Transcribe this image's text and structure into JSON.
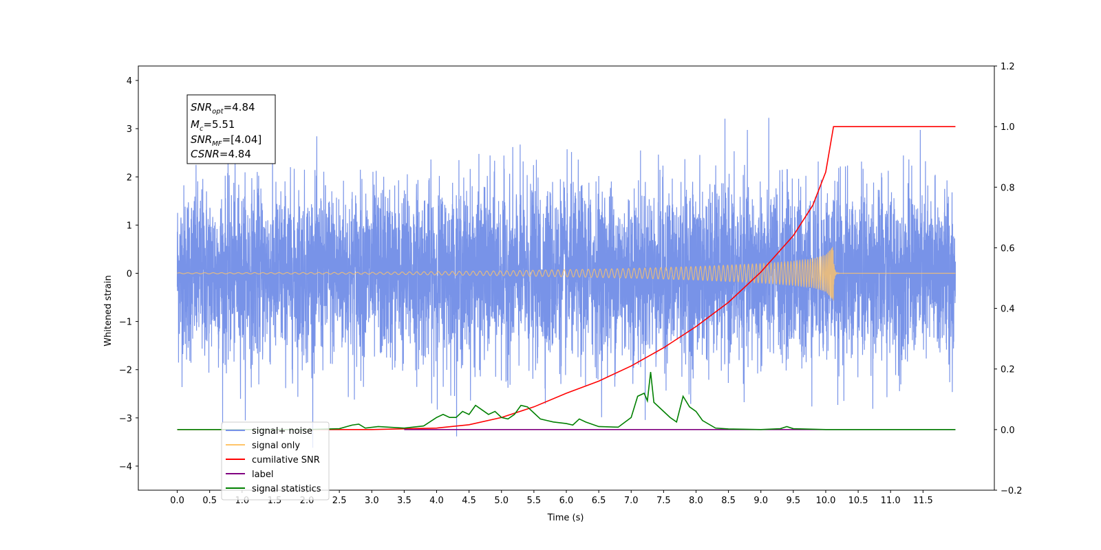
{
  "chart_data": {
    "type": "line",
    "title": "",
    "xlabel": "Time (s)",
    "ylabel": "Whitened strain",
    "y2label": "",
    "xlim": [
      -0.6,
      12.6
    ],
    "ylim": [
      -4.5,
      4.3
    ],
    "y2lim": [
      -0.2,
      1.2
    ],
    "x_ticks": [
      "0.0",
      "0.5",
      "1.0",
      "1.5",
      "2.0",
      "2.5",
      "3.0",
      "3.5",
      "4.0",
      "4.5",
      "5.0",
      "5.5",
      "6.0",
      "6.5",
      "7.0",
      "7.5",
      "8.0",
      "8.5",
      "9.0",
      "9.5",
      "10.0",
      "10.5",
      "11.0",
      "11.5"
    ],
    "y_ticks": [
      "4",
      "3",
      "2",
      "1",
      "0",
      "−1",
      "−2",
      "−3",
      "−4"
    ],
    "y2_ticks": [
      "1.2",
      "1.0",
      "0.8",
      "0.6",
      "0.4",
      "0.2",
      "0.0",
      "−0.2"
    ],
    "grid": false,
    "legend_position": "lower-left",
    "series": [
      {
        "name": "signal+ noise",
        "axis": "left",
        "color": "#7893e8",
        "style": "noise",
        "x_start": 0.0,
        "x_end": 12.0,
        "approx_std": 0.9,
        "approx_max": 3.9,
        "approx_min": -4.1
      },
      {
        "name": "signal only",
        "axis": "left",
        "color": "#ffc468",
        "style": "chirp",
        "x_start": 0.0,
        "x_merger": 10.12,
        "x_end": 12.0,
        "envelope": [
          [
            0.0,
            0.01
          ],
          [
            3.0,
            0.02
          ],
          [
            5.0,
            0.05
          ],
          [
            7.0,
            0.1
          ],
          [
            8.0,
            0.14
          ],
          [
            9.0,
            0.2
          ],
          [
            9.5,
            0.25
          ],
          [
            9.8,
            0.3
          ],
          [
            10.0,
            0.38
          ],
          [
            10.12,
            0.57
          ]
        ]
      },
      {
        "name": "cumilative SNR",
        "axis": "right",
        "color": "#ff0000",
        "points": [
          [
            0.0,
            0.0
          ],
          [
            3.0,
            0.0
          ],
          [
            4.0,
            0.005
          ],
          [
            4.5,
            0.016
          ],
          [
            5.0,
            0.04
          ],
          [
            5.5,
            0.075
          ],
          [
            6.0,
            0.12
          ],
          [
            6.5,
            0.16
          ],
          [
            7.0,
            0.21
          ],
          [
            7.5,
            0.27
          ],
          [
            8.0,
            0.34
          ],
          [
            8.5,
            0.42
          ],
          [
            9.0,
            0.52
          ],
          [
            9.5,
            0.64
          ],
          [
            9.8,
            0.74
          ],
          [
            10.0,
            0.85
          ],
          [
            10.12,
            1.0
          ],
          [
            11.5,
            1.0
          ],
          [
            12.0,
            1.0
          ]
        ]
      },
      {
        "name": "label",
        "axis": "right",
        "color": "#800080",
        "points": [
          [
            3.5,
            0.0
          ],
          [
            12.0,
            0.0
          ]
        ]
      },
      {
        "name": "signal statistics",
        "axis": "right",
        "color": "#008000",
        "points": [
          [
            0.0,
            0.0
          ],
          [
            1.0,
            0.0
          ],
          [
            2.0,
            0.0
          ],
          [
            2.5,
            0.003
          ],
          [
            2.7,
            0.015
          ],
          [
            2.8,
            0.018
          ],
          [
            2.9,
            0.005
          ],
          [
            3.1,
            0.01
          ],
          [
            3.5,
            0.005
          ],
          [
            3.8,
            0.012
          ],
          [
            4.0,
            0.04
          ],
          [
            4.1,
            0.05
          ],
          [
            4.2,
            0.04
          ],
          [
            4.3,
            0.04
          ],
          [
            4.4,
            0.06
          ],
          [
            4.5,
            0.05
          ],
          [
            4.6,
            0.08
          ],
          [
            4.7,
            0.065
          ],
          [
            4.8,
            0.05
          ],
          [
            4.9,
            0.06
          ],
          [
            5.0,
            0.04
          ],
          [
            5.1,
            0.035
          ],
          [
            5.2,
            0.05
          ],
          [
            5.3,
            0.08
          ],
          [
            5.4,
            0.075
          ],
          [
            5.5,
            0.055
          ],
          [
            5.6,
            0.035
          ],
          [
            5.7,
            0.03
          ],
          [
            5.8,
            0.025
          ],
          [
            6.0,
            0.02
          ],
          [
            6.1,
            0.015
          ],
          [
            6.2,
            0.035
          ],
          [
            6.3,
            0.025
          ],
          [
            6.5,
            0.01
          ],
          [
            6.8,
            0.008
          ],
          [
            7.0,
            0.04
          ],
          [
            7.1,
            0.11
          ],
          [
            7.2,
            0.12
          ],
          [
            7.25,
            0.095
          ],
          [
            7.3,
            0.19
          ],
          [
            7.35,
            0.09
          ],
          [
            7.45,
            0.07
          ],
          [
            7.6,
            0.04
          ],
          [
            7.7,
            0.025
          ],
          [
            7.8,
            0.11
          ],
          [
            7.9,
            0.075
          ],
          [
            8.0,
            0.06
          ],
          [
            8.1,
            0.03
          ],
          [
            8.3,
            0.005
          ],
          [
            8.5,
            0.002
          ],
          [
            9.0,
            0.0
          ],
          [
            9.3,
            0.003
          ],
          [
            9.4,
            0.01
          ],
          [
            9.5,
            0.003
          ],
          [
            10.0,
            0.0
          ],
          [
            12.0,
            0.0
          ]
        ]
      }
    ],
    "legend_entries": [
      {
        "label": "signal+ noise",
        "color": "#7893e8"
      },
      {
        "label": "signal only",
        "color": "#ffc468"
      },
      {
        "label": "cumilative SNR",
        "color": "#ff0000"
      },
      {
        "label": "label",
        "color": "#800080"
      },
      {
        "label": "signal statistics",
        "color": "#008000"
      }
    ],
    "annotation": {
      "snr_opt": "=4.84",
      "mc": "=5.51",
      "snr_mf": "=[4.04]",
      "csnr": "=4.84"
    }
  }
}
